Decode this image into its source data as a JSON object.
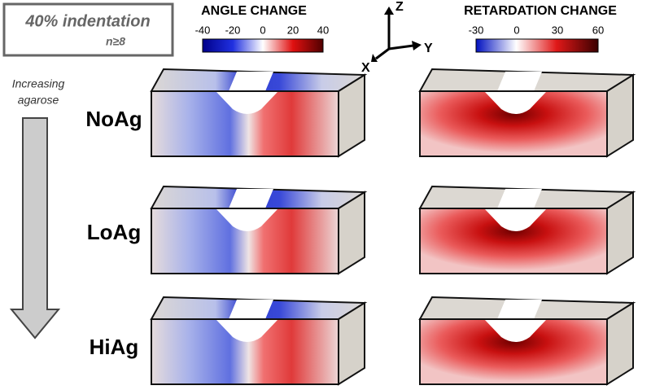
{
  "header": {
    "title": "40% indentation",
    "subtitle": "n≥8"
  },
  "colorbars": [
    {
      "title": "ANGLE CHANGE",
      "ticks": [
        -40,
        -20,
        0,
        20,
        40
      ]
    },
    {
      "title": "RETARDATION CHANGE",
      "ticks": [
        -30,
        0,
        30,
        60
      ]
    }
  ],
  "axes": {
    "z": "Z",
    "y": "Y",
    "x": "X"
  },
  "gradient_label": [
    "Increasing",
    "agarose"
  ],
  "rows": [
    "NoAg",
    "LoAg",
    "HiAg"
  ]
}
